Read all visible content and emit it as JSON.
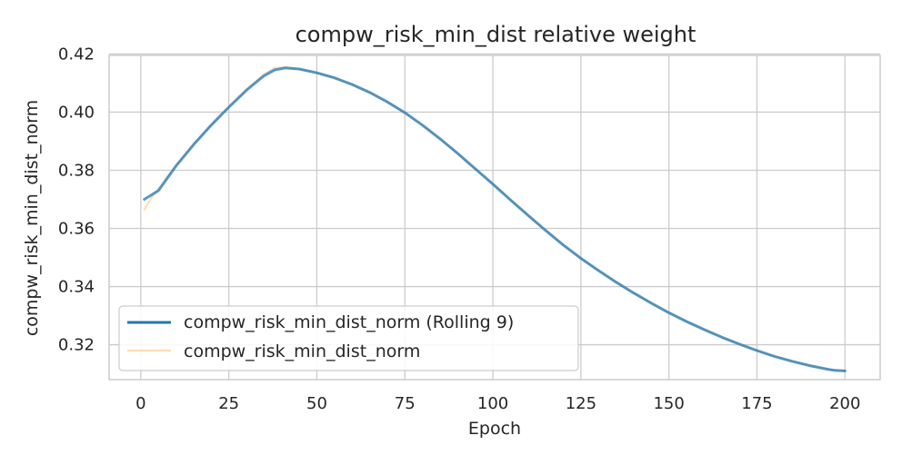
{
  "chart_data": {
    "type": "line",
    "title": "compw_risk_min_dist relative weight",
    "xlabel": "Epoch",
    "ylabel": "compw_risk_min_dist_norm",
    "xlim": [
      -9,
      210
    ],
    "ylim": [
      0.308,
      0.4195
    ],
    "xticks": [
      0,
      25,
      50,
      75,
      100,
      125,
      150,
      175,
      200
    ],
    "yticks": [
      0.32,
      0.34,
      0.36,
      0.38,
      0.4,
      0.42
    ],
    "ytick_labels": [
      "0.32",
      "0.34",
      "0.36",
      "0.38",
      "0.40",
      "0.42"
    ],
    "grid": true,
    "legend_position": "lower-left",
    "series": [
      {
        "name": "compw_risk_min_dist_norm (Rolling 9)",
        "color": "#1f77b4",
        "x": [
          1,
          5,
          10,
          15,
          20,
          25,
          30,
          35,
          38,
          41,
          45,
          50,
          55,
          60,
          65,
          70,
          75,
          80,
          85,
          90,
          95,
          100,
          105,
          110,
          115,
          120,
          125,
          130,
          135,
          140,
          145,
          150,
          155,
          160,
          165,
          170,
          175,
          180,
          185,
          190,
          195,
          197,
          200
        ],
        "y": [
          0.37,
          0.373,
          0.3815,
          0.3888,
          0.3955,
          0.4017,
          0.4075,
          0.4125,
          0.4145,
          0.4152,
          0.4148,
          0.4135,
          0.4118,
          0.4095,
          0.4068,
          0.4035,
          0.3998,
          0.3955,
          0.3908,
          0.3858,
          0.3805,
          0.3752,
          0.3698,
          0.3645,
          0.3593,
          0.3543,
          0.3497,
          0.3455,
          0.3415,
          0.3378,
          0.3343,
          0.331,
          0.328,
          0.3252,
          0.3226,
          0.3202,
          0.318,
          0.316,
          0.3143,
          0.3128,
          0.3116,
          0.3112,
          0.311
        ]
      },
      {
        "name": "compw_risk_min_dist_norm",
        "color": "#ffbb78",
        "x": [
          1,
          2,
          3,
          4,
          5,
          10,
          15,
          20,
          25,
          30,
          35,
          38,
          41,
          45,
          50,
          55,
          60,
          65,
          70,
          75,
          80,
          85,
          90,
          95,
          100,
          105,
          110,
          115,
          120,
          125,
          130,
          135,
          140,
          145,
          150,
          155,
          160,
          165,
          170,
          175,
          180,
          185,
          190,
          195,
          197,
          200
        ],
        "y": [
          0.3665,
          0.3685,
          0.3705,
          0.372,
          0.3735,
          0.3817,
          0.389,
          0.3957,
          0.4019,
          0.4078,
          0.413,
          0.4152,
          0.4154,
          0.4148,
          0.4135,
          0.4118,
          0.4095,
          0.4068,
          0.4035,
          0.3998,
          0.3955,
          0.3908,
          0.3858,
          0.3805,
          0.3752,
          0.3698,
          0.3645,
          0.3593,
          0.3543,
          0.3497,
          0.3455,
          0.3415,
          0.3378,
          0.3343,
          0.331,
          0.328,
          0.3252,
          0.3226,
          0.3202,
          0.318,
          0.316,
          0.3143,
          0.3128,
          0.3116,
          0.3112,
          0.311
        ]
      }
    ]
  }
}
